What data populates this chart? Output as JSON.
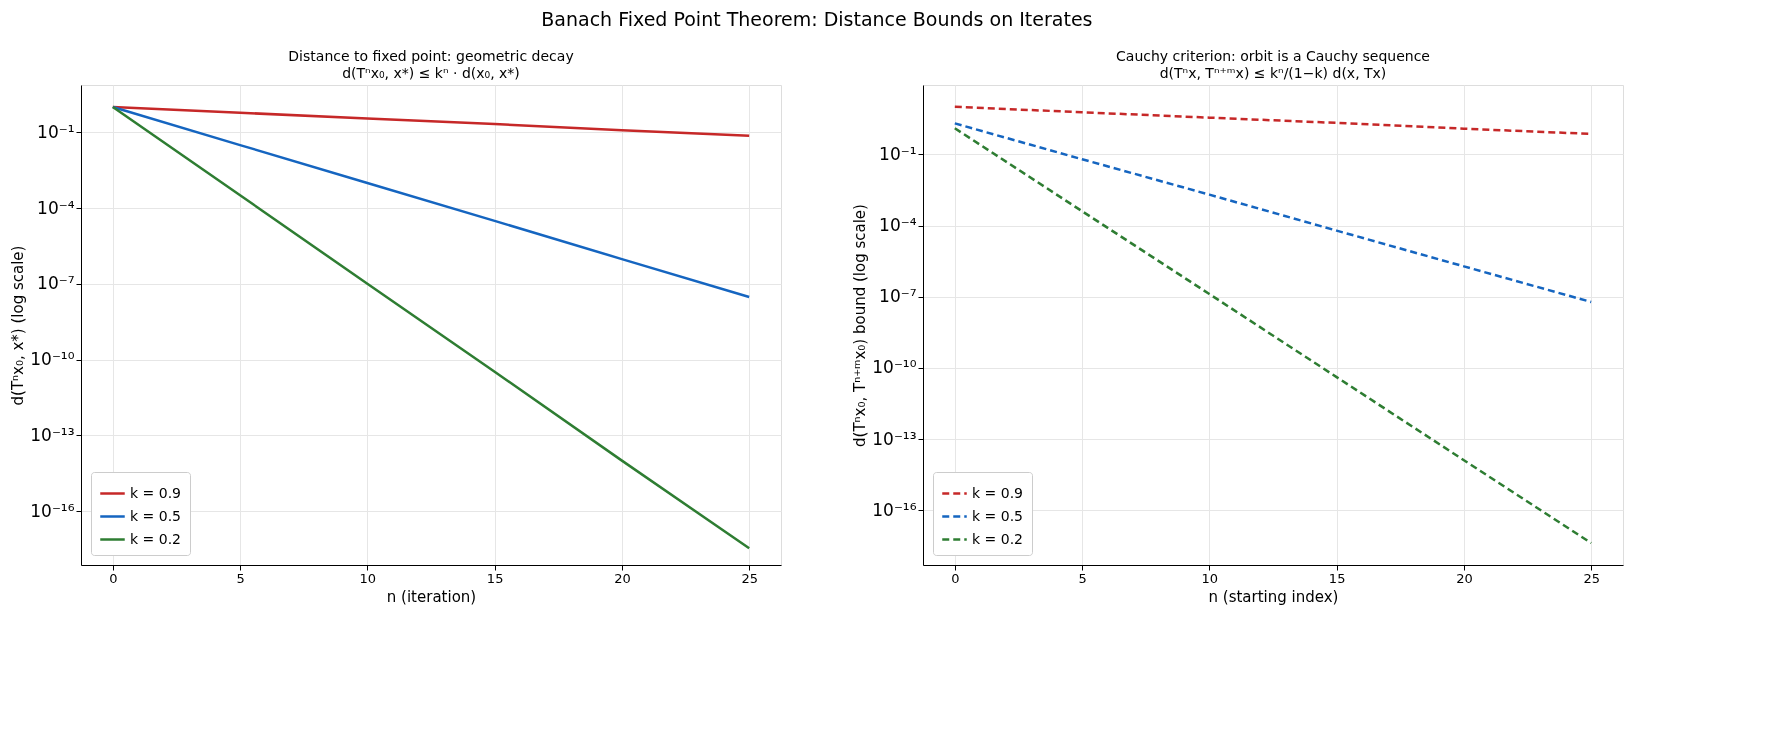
{
  "chart_data": [
    {
      "type": "line",
      "title": "Distance to fixed point: geometric decay",
      "subtitle": "d(Tⁿx₀, x*) ≤ kⁿ · d(x₀, x*)",
      "annotations": [
        "Banach Fixed Point Theorem: Distance Bounds on Iterates"
      ],
      "xlabel": "n (iteration)",
      "ylabel": "d(Tⁿx₀, x*)  (log scale)",
      "x": [
        0,
        5,
        10,
        15,
        20,
        25
      ],
      "series": [
        {
          "name": "k = 0.9",
          "color": "#c62828",
          "values": [
            1,
            0.59,
            0.35,
            0.21,
            0.12,
            0.072
          ]
        },
        {
          "name": "k = 0.5",
          "color": "#1565c0",
          "values": [
            1,
            0.031,
            0.00098,
            3.1e-05,
            9.5e-07,
            3e-08
          ]
        },
        {
          "name": "k = 0.2",
          "color": "#2e7d32",
          "values": [
            1,
            0.00032,
            1e-07,
            3.3e-11,
            1e-14,
            3.4e-18
          ]
        }
      ],
      "log": "y",
      "xlim": [
        -1.25,
        26.25
      ],
      "xticks": [
        0,
        5,
        10,
        15,
        20,
        25
      ],
      "ylim": [
        7.4e-19,
        7.4
      ],
      "yticks": [
        {
          "value": 0.1,
          "label": "10⁻¹"
        },
        {
          "value": 0.0001,
          "label": "10⁻⁴"
        },
        {
          "value": 1e-07,
          "label": "10⁻⁷"
        },
        {
          "value": 1e-10,
          "label": "10⁻¹⁰"
        },
        {
          "value": 1e-13,
          "label": "10⁻¹³"
        },
        {
          "value": 1e-16,
          "label": "10⁻¹⁶"
        }
      ],
      "grid": true,
      "legend": "bottom left",
      "line_style": "solid",
      "marker": "none"
    },
    {
      "type": "line",
      "title": "Cauchy criterion: orbit is a Cauchy sequence",
      "subtitle": "d(Tⁿx, Tⁿ⁺ᵐx) ≤ kⁿ/(1−k) d(x, Tx)",
      "xlabel": "n (starting index)",
      "ylabel": "d(Tⁿx₀, Tⁿ⁺ᵐx₀) bound  (log scale)",
      "x": [
        0,
        5,
        10,
        15,
        20,
        25
      ],
      "series": [
        {
          "name": "k = 0.9",
          "color": "#c62828",
          "values": [
            10,
            5.9,
            3.5,
            2.1,
            1.2,
            0.72
          ]
        },
        {
          "name": "k = 0.5",
          "color": "#1565c0",
          "values": [
            2,
            0.062,
            0.002,
            6.1e-05,
            1.9e-06,
            6e-08
          ]
        },
        {
          "name": "k = 0.2",
          "color": "#2e7d32",
          "values": [
            1.25,
            0.0004,
            1.3e-07,
            4.1e-11,
            1.3e-14,
            4.2e-18
          ]
        }
      ],
      "log": "y",
      "xlim": [
        -1.25,
        26.25
      ],
      "xticks": [
        0,
        5,
        10,
        15,
        20,
        25
      ],
      "ylim": [
        5e-19,
        83
      ],
      "yticks": [
        {
          "value": 0.1,
          "label": "10⁻¹"
        },
        {
          "value": 0.0001,
          "label": "10⁻⁴"
        },
        {
          "value": 1e-07,
          "label": "10⁻⁷"
        },
        {
          "value": 1e-10,
          "label": "10⁻¹⁰"
        },
        {
          "value": 1e-13,
          "label": "10⁻¹³"
        },
        {
          "value": 1e-16,
          "label": "10⁻¹⁶"
        }
      ],
      "grid": true,
      "legend": "bottom left",
      "line_style": "dashed",
      "marker": "none"
    }
  ]
}
